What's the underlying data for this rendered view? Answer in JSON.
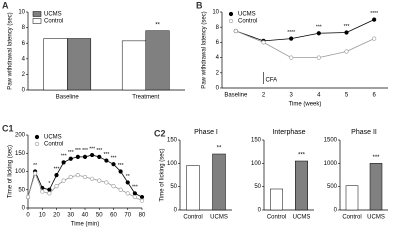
{
  "chart_data": [
    {
      "type": "bar",
      "label": "A",
      "ylabel": "Paw withdrawal latency (sec)",
      "categories": [
        "Baseline",
        "Treatment"
      ],
      "series": [
        {
          "name": "UCMS",
          "color": "#808080",
          "values": [
            6.6,
            7.6
          ],
          "annotations": [
            null,
            "**"
          ]
        },
        {
          "name": "Control",
          "color": "#ffffff",
          "values": [
            6.6,
            6.3
          ],
          "annotations": [
            null,
            null
          ]
        }
      ],
      "ylim": [
        0,
        10
      ],
      "yticks": [
        0,
        2,
        4,
        6,
        8,
        10
      ],
      "legend": "top-left"
    },
    {
      "type": "line",
      "label": "B",
      "ylabel": "Paw withdrawal latency (sec)",
      "xlabel": "Time (week)",
      "categories": [
        "Baseline",
        "2",
        "3",
        "4",
        "5",
        "6"
      ],
      "note": "CFA",
      "series": [
        {
          "name": "UCMS",
          "color": "#000000",
          "fill": "#000000",
          "values": [
            7.5,
            6.2,
            6.5,
            7.2,
            7.3,
            9.0
          ],
          "annotations": [
            null,
            null,
            "****",
            "***",
            "***",
            "****"
          ]
        },
        {
          "name": "Control",
          "color": "#999999",
          "fill": "#ffffff",
          "values": [
            7.5,
            6.0,
            4.0,
            4.0,
            4.8,
            6.5
          ],
          "annotations": [
            null,
            null,
            null,
            null,
            null,
            null
          ]
        }
      ],
      "ylim": [
        0,
        10
      ],
      "yticks": [
        0,
        2,
        4,
        6,
        8,
        10
      ],
      "legend": "top-left"
    },
    {
      "type": "line",
      "label": "C1",
      "ylabel": "Time of licking (sec)",
      "xlabel": "Time (min)",
      "x": [
        0,
        5,
        10,
        15,
        20,
        25,
        30,
        35,
        40,
        45,
        50,
        55,
        60,
        65,
        70,
        75,
        80
      ],
      "series": [
        {
          "name": "UCMS",
          "color": "#000000",
          "fill": "#000000",
          "values": [
            30,
            100,
            55,
            50,
            90,
            125,
            135,
            140,
            140,
            145,
            140,
            130,
            120,
            100,
            70,
            40,
            30
          ],
          "annotations": [
            null,
            "**",
            null,
            "*",
            "***",
            "***",
            "***",
            "***",
            "***",
            "***",
            "***",
            "***",
            "***",
            "***",
            "**",
            "***",
            null
          ]
        },
        {
          "name": "Control",
          "color": "#999999",
          "fill": "#ffffff",
          "values": [
            30,
            95,
            45,
            40,
            60,
            75,
            85,
            90,
            85,
            80,
            75,
            70,
            60,
            50,
            40,
            30,
            20
          ],
          "annotations": [
            null,
            null,
            null,
            null,
            null,
            null,
            null,
            null,
            null,
            null,
            null,
            null,
            null,
            null,
            null,
            null,
            null
          ]
        }
      ],
      "xlim": [
        0,
        80
      ],
      "xticks": [
        0,
        10,
        20,
        30,
        40,
        50,
        60,
        70,
        80
      ],
      "ylim": [
        0,
        200
      ],
      "yticks": [
        0,
        50,
        100,
        150,
        200
      ],
      "legend": "top-left"
    },
    {
      "type": "bar",
      "label": "C2",
      "title": "Phase I",
      "ylabel": "Time of licking (sec)",
      "categories": [
        "Control",
        "UCMS"
      ],
      "values": [
        95,
        120
      ],
      "colors": [
        "#ffffff",
        "#808080"
      ],
      "annotations": [
        null,
        "**"
      ],
      "ylim": [
        0,
        150
      ],
      "yticks": [
        0,
        50,
        100,
        150
      ]
    },
    {
      "type": "bar",
      "title": "Interphase",
      "categories": [
        "Control",
        "UCMS"
      ],
      "values": [
        45,
        105
      ],
      "colors": [
        "#ffffff",
        "#808080"
      ],
      "annotations": [
        null,
        "***"
      ],
      "ylim": [
        0,
        150
      ],
      "yticks": [
        0,
        50,
        100,
        150
      ]
    },
    {
      "type": "bar",
      "title": "Phase II",
      "categories": [
        "Control",
        "UCMS"
      ],
      "values": [
        520,
        1000
      ],
      "colors": [
        "#ffffff",
        "#808080"
      ],
      "annotations": [
        null,
        "***"
      ],
      "ylim": [
        0,
        1500
      ],
      "yticks": [
        0,
        500,
        1000,
        1500
      ]
    }
  ]
}
